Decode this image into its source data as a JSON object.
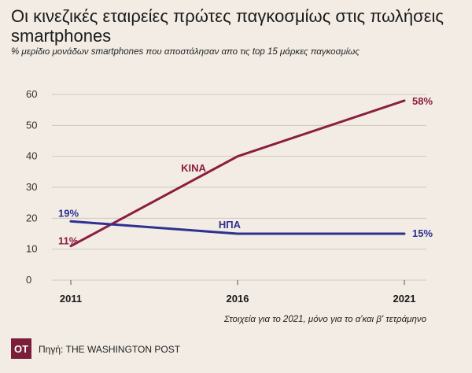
{
  "header": {
    "title": "Οι κινεζικές εταιρείες πρώτες παγκοσμίως στις πωλήσεις smartphones",
    "subtitle": "% μερίδιο μονάδων smartphones που αποστάλησαν απο τις top 15 μάρκες παγκοσμίως"
  },
  "footer": {
    "note": "Στοιχεία για το 2021, μόνο για το α'και β' τετράμηνο",
    "logo": "OT",
    "source": "Πηγή: THE WASHINGTON POST"
  },
  "chart_data": {
    "type": "line",
    "title": "Οι κινεζικές εταιρείες πρώτες παγκοσμίως στις πωλήσεις smartphones",
    "xlabel": "",
    "ylabel": "% μερίδιο μονάδων smartphones",
    "categories": [
      "2011",
      "2016",
      "2021"
    ],
    "yticks": [
      "0",
      "10",
      "20",
      "30",
      "40",
      "50",
      "60"
    ],
    "ylim": [
      0,
      60
    ],
    "grid": true,
    "series": [
      {
        "name": "ΚΙΝΑ",
        "color": "#8c1d3f",
        "values": [
          11,
          40,
          58
        ],
        "data_labels": [
          "11%",
          "",
          "58%"
        ]
      },
      {
        "name": "ΗΠΑ",
        "color": "#2e3192",
        "values": [
          19,
          15,
          15
        ],
        "data_labels": [
          "19%",
          "",
          "15%"
        ]
      }
    ]
  }
}
